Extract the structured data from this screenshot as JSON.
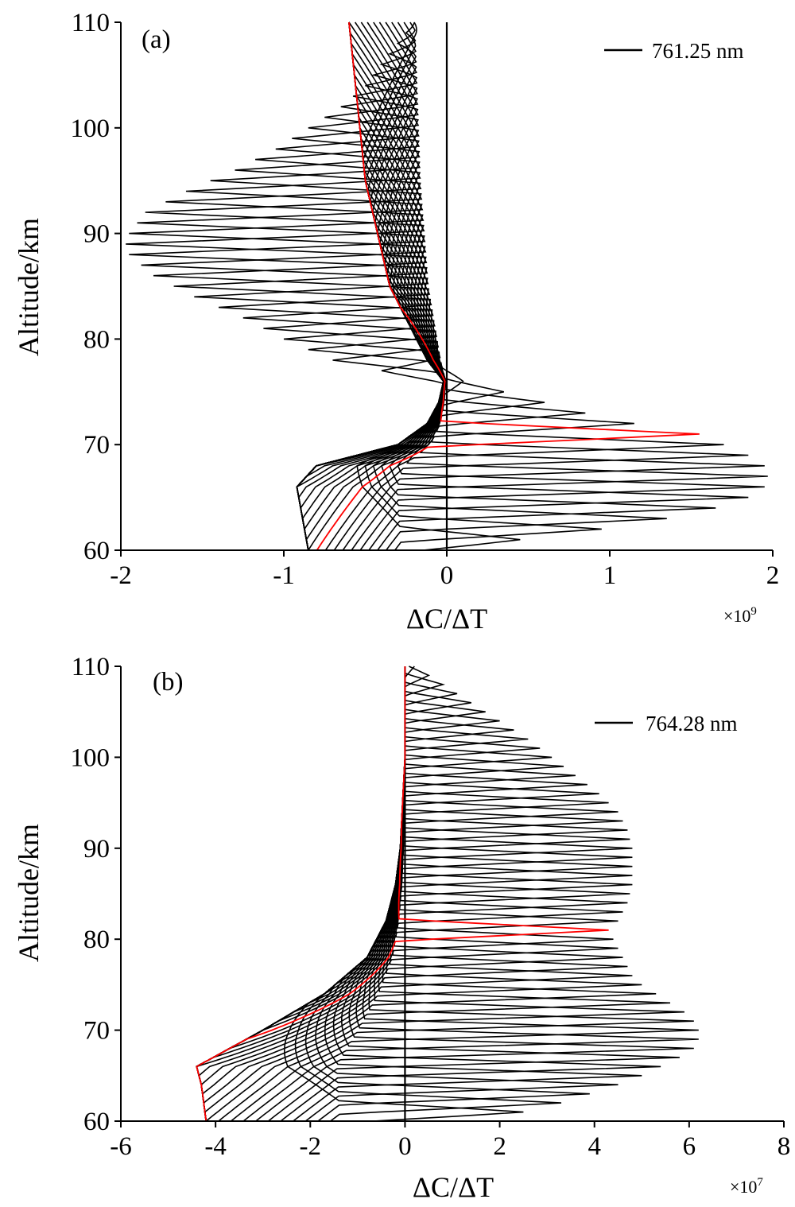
{
  "chart_data": [
    {
      "type": "line",
      "panel_label": "(a)",
      "xlabel": "ΔC/ΔT",
      "ylabel": "Altitude/km",
      "x_multiplier": "×10",
      "x_multiplier_exponent": "9",
      "xlim": [
        -2,
        2
      ],
      "ylim": [
        60,
        110
      ],
      "x_ticks": [
        -2,
        -1,
        0,
        1,
        2
      ],
      "y_ticks": [
        60,
        70,
        80,
        90,
        100,
        110
      ],
      "x_tick_labels": [
        "-2",
        "-1",
        "0",
        "1",
        "2"
      ],
      "y_tick_labels": [
        "60",
        "70",
        "80",
        "90",
        "100",
        "110"
      ],
      "legend": [
        {
          "label": "761.25 nm",
          "color": "#000000"
        }
      ],
      "legend_position": "top-right",
      "grid": false,
      "series_color": "#000000",
      "highlight_color": "#ff0000",
      "family": {
        "count": 50,
        "peak_min_altitude": 61,
        "peak_max_altitude": 110,
        "peak_amplitude": [
          [
            61,
            0.45
          ],
          [
            62,
            0.95
          ],
          [
            63,
            1.35
          ],
          [
            64,
            1.65
          ],
          [
            65,
            1.85
          ],
          [
            66,
            1.95
          ],
          [
            67,
            1.97
          ],
          [
            68,
            1.95
          ],
          [
            69,
            1.85
          ],
          [
            70,
            1.7
          ],
          [
            71,
            1.55
          ],
          [
            72,
            1.15
          ],
          [
            73,
            0.85
          ],
          [
            74,
            0.6
          ],
          [
            75,
            0.35
          ],
          [
            76,
            0.1
          ],
          [
            77,
            -0.4
          ],
          [
            78,
            -0.7
          ],
          [
            80,
            -1.0
          ],
          [
            82,
            -1.25
          ],
          [
            84,
            -1.55
          ],
          [
            86,
            -1.8
          ],
          [
            88,
            -1.95
          ],
          [
            89,
            -1.97
          ],
          [
            90,
            -1.95
          ],
          [
            92,
            -1.85
          ],
          [
            94,
            -1.6
          ],
          [
            96,
            -1.3
          ],
          [
            98,
            -1.05
          ],
          [
            100,
            -0.85
          ],
          [
            102,
            -0.65
          ],
          [
            104,
            -0.5
          ],
          [
            106,
            -0.4
          ],
          [
            108,
            -0.3
          ],
          [
            110,
            -0.2
          ]
        ],
        "base_value": [
          [
            60,
            -0.85
          ],
          [
            66,
            -0.92
          ],
          [
            68,
            -0.8
          ],
          [
            70,
            -0.3
          ],
          [
            72,
            -0.12
          ],
          [
            74,
            -0.05
          ],
          [
            76,
            -0.02
          ],
          [
            78,
            -0.12
          ],
          [
            85,
            -0.35
          ],
          [
            95,
            -0.5
          ],
          [
            110,
            -0.6
          ]
        ]
      },
      "highlighted_peak_altitude": 71
    },
    {
      "type": "line",
      "panel_label": "(b)",
      "xlabel": "ΔC/ΔT",
      "ylabel": "Altitude/km",
      "x_multiplier": "×10",
      "x_multiplier_exponent": "7",
      "xlim": [
        -6,
        8
      ],
      "ylim": [
        60,
        110
      ],
      "x_ticks": [
        -6,
        -4,
        -2,
        0,
        2,
        4,
        6,
        8
      ],
      "y_ticks": [
        60,
        70,
        80,
        90,
        100,
        110
      ],
      "x_tick_labels": [
        "-6",
        "-4",
        "-2",
        "0",
        "2",
        "4",
        "6",
        "8"
      ],
      "y_tick_labels": [
        "60",
        "70",
        "80",
        "90",
        "100",
        "110"
      ],
      "legend": [
        {
          "label": "764.28 nm",
          "color": "#000000"
        }
      ],
      "legend_position": "top-right",
      "grid": false,
      "series_color": "#000000",
      "highlight_color": "#ff0000",
      "family": {
        "count": 50,
        "peak_min_altitude": 61,
        "peak_max_altitude": 110,
        "peak_amplitude": [
          [
            61,
            2.5
          ],
          [
            62,
            3.3
          ],
          [
            63,
            3.9
          ],
          [
            64,
            4.5
          ],
          [
            65,
            5.0
          ],
          [
            66,
            5.4
          ],
          [
            67,
            5.8
          ],
          [
            68,
            6.1
          ],
          [
            69,
            6.2
          ],
          [
            70,
            6.2
          ],
          [
            71,
            6.1
          ],
          [
            72,
            5.9
          ],
          [
            73,
            5.6
          ],
          [
            74,
            5.3
          ],
          [
            75,
            5.0
          ],
          [
            76,
            4.8
          ],
          [
            77,
            4.7
          ],
          [
            78,
            4.6
          ],
          [
            79,
            4.5
          ],
          [
            80,
            4.4
          ],
          [
            81,
            4.3
          ],
          [
            82,
            4.5
          ],
          [
            84,
            4.7
          ],
          [
            86,
            4.8
          ],
          [
            88,
            4.8
          ],
          [
            90,
            4.8
          ],
          [
            92,
            4.7
          ],
          [
            94,
            4.5
          ],
          [
            96,
            4.1
          ],
          [
            98,
            3.6
          ],
          [
            100,
            3.1
          ],
          [
            102,
            2.6
          ],
          [
            104,
            2.0
          ],
          [
            106,
            1.4
          ],
          [
            108,
            0.8
          ],
          [
            110,
            0.2
          ]
        ],
        "base_value": [
          [
            60,
            -4.2
          ],
          [
            64,
            -4.3
          ],
          [
            66,
            -4.4
          ],
          [
            70,
            -3.0
          ],
          [
            74,
            -1.7
          ],
          [
            78,
            -0.8
          ],
          [
            82,
            -0.4
          ],
          [
            86,
            -0.2
          ],
          [
            90,
            -0.1
          ],
          [
            100,
            0.0
          ],
          [
            110,
            0.0
          ]
        ]
      },
      "highlighted_peak_altitude": 81
    }
  ]
}
